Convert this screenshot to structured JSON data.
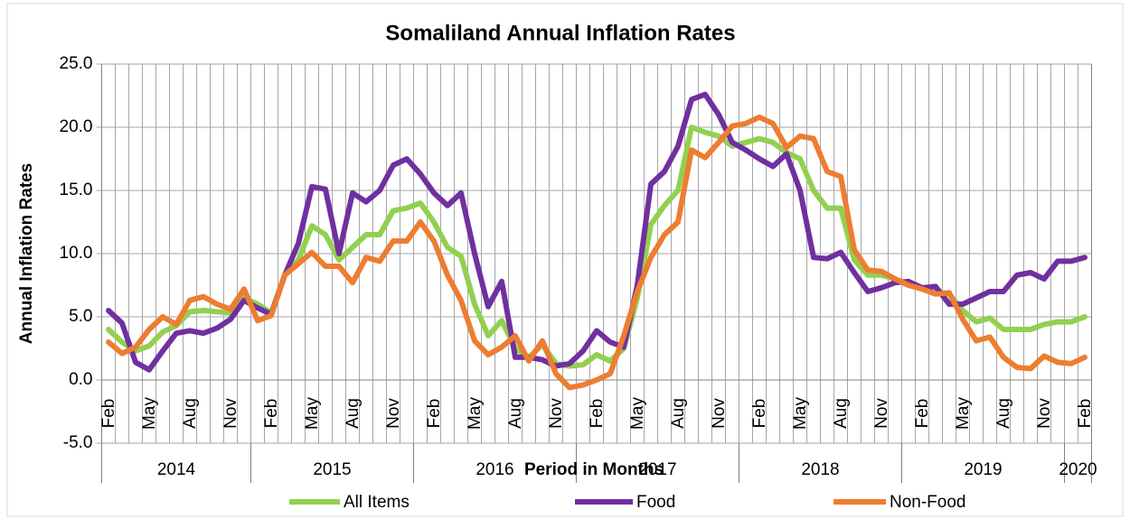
{
  "chart_data": {
    "type": "line",
    "title": "Somaliland Annual Inflation Rates",
    "x_label": "Period  in Months",
    "y_label": "Annual Inflation Rates",
    "categories": [
      "Feb",
      null,
      null,
      "May",
      null,
      null,
      "Aug",
      null,
      null,
      "Nov",
      null,
      null,
      "Feb",
      null,
      null,
      "May",
      null,
      null,
      "Aug",
      null,
      null,
      "Nov",
      null,
      null,
      "Feb",
      null,
      null,
      "May",
      null,
      null,
      "Aug",
      null,
      null,
      "Nov",
      null,
      null,
      "Feb",
      null,
      null,
      "May",
      null,
      null,
      "Aug",
      null,
      null,
      "Nov",
      null,
      null,
      "Feb",
      null,
      null,
      "May",
      null,
      null,
      "Aug",
      null,
      null,
      "Nov",
      null,
      null,
      "Feb",
      null,
      null,
      "May",
      null,
      null,
      "Aug",
      null,
      null,
      "Nov",
      null,
      null,
      "Feb"
    ],
    "years": [
      "2014",
      "2015",
      "2016",
      "2017",
      "2018",
      "2019",
      "2020"
    ],
    "series": [
      {
        "name": "All Items",
        "color": "#92d050",
        "values": [
          4.0,
          3.0,
          2.3,
          2.7,
          3.8,
          4.3,
          5.4,
          5.5,
          5.4,
          5.3,
          6.5,
          6.0,
          5.3,
          8.3,
          9.5,
          12.2,
          11.5,
          9.5,
          10.5,
          11.5,
          11.5,
          13.4,
          13.6,
          14.0,
          12.5,
          10.5,
          9.8,
          6.0,
          3.5,
          4.7,
          2.5,
          1.8,
          2.8,
          1.3,
          1.1,
          1.2,
          2.0,
          1.5,
          2.5,
          6.5,
          12.3,
          13.8,
          15.0,
          20.0,
          19.6,
          19.3,
          18.5,
          18.8,
          19.1,
          18.8,
          18.0,
          17.5,
          15.0,
          13.6,
          13.6,
          9.5,
          8.3,
          8.3,
          8.0,
          7.6,
          7.3,
          7.0,
          6.8,
          5.5,
          4.6,
          4.9,
          4.0,
          4.0,
          4.0,
          4.4,
          4.6,
          4.6,
          5.0
        ]
      },
      {
        "name": "Food",
        "color": "#7030a0",
        "values": [
          5.5,
          4.5,
          1.4,
          0.8,
          2.3,
          3.7,
          3.9,
          3.7,
          4.1,
          4.8,
          6.3,
          5.7,
          5.2,
          8.3,
          10.8,
          15.3,
          15.1,
          10.0,
          14.8,
          14.1,
          15.0,
          17.0,
          17.5,
          16.3,
          14.8,
          13.8,
          14.8,
          10.0,
          5.8,
          7.8,
          1.8,
          1.8,
          1.6,
          1.1,
          1.3,
          2.3,
          3.9,
          3.0,
          2.6,
          7.5,
          15.5,
          16.5,
          18.5,
          22.2,
          22.6,
          21.0,
          18.8,
          18.2,
          17.5,
          16.9,
          17.9,
          15.0,
          9.7,
          9.6,
          10.1,
          8.5,
          7.0,
          7.3,
          7.7,
          7.8,
          7.3,
          7.4,
          6.0,
          6.0,
          6.5,
          7.0,
          7.0,
          8.3,
          8.5,
          8.0,
          9.4,
          9.4,
          9.7
        ]
      },
      {
        "name": "Non-Food",
        "color": "#ed7d31",
        "values": [
          3.0,
          2.1,
          2.6,
          4.0,
          5.0,
          4.4,
          6.3,
          6.6,
          6.0,
          5.6,
          7.2,
          4.7,
          5.1,
          8.3,
          9.2,
          10.1,
          9.0,
          9.0,
          7.7,
          9.7,
          9.4,
          11.0,
          11.0,
          12.5,
          11.0,
          8.3,
          6.3,
          3.1,
          2.0,
          2.6,
          3.5,
          1.5,
          3.1,
          0.5,
          -0.6,
          -0.4,
          0,
          0.5,
          3.5,
          7.0,
          9.7,
          11.5,
          12.5,
          18.2,
          17.6,
          18.8,
          20.1,
          20.3,
          20.8,
          20.3,
          18.4,
          19.3,
          19.1,
          16.5,
          16.1,
          10.3,
          8.7,
          8.6,
          8.0,
          7.5,
          7.2,
          6.8,
          6.9,
          4.8,
          3.1,
          3.4,
          1.8,
          1.0,
          0.9,
          1.9,
          1.4,
          1.3,
          1.8
        ]
      }
    ],
    "ylim": [
      -5,
      25
    ],
    "yticks": [
      {
        "value": -5,
        "label": "-5.0"
      },
      {
        "value": 0,
        "label": "0.0"
      },
      {
        "value": 5,
        "label": "5.0"
      },
      {
        "value": 10,
        "label": "10.0"
      },
      {
        "value": 15,
        "label": "15.0"
      },
      {
        "value": 20,
        "label": "20.0"
      },
      {
        "value": 25,
        "label": "25.0"
      }
    ],
    "grid": true,
    "legend": "bottom"
  }
}
